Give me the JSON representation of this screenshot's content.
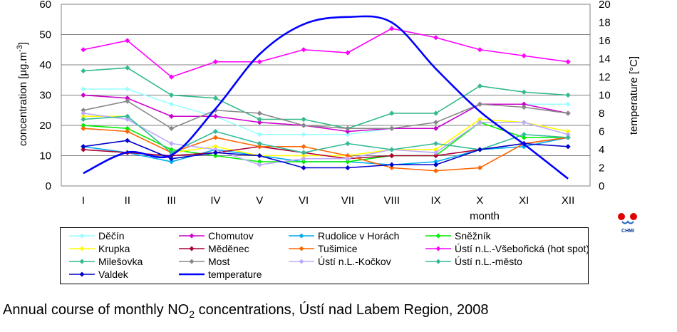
{
  "chart_data": {
    "type": "line",
    "categories": [
      "I",
      "II",
      "III",
      "IV",
      "V",
      "VI",
      "VII",
      "VIII",
      "IX",
      "X",
      "XI",
      "XII"
    ],
    "xlabel": "month",
    "ylabel": "concentration [µg.m-3]",
    "y2label": "temperature [°C]",
    "ylim": [
      0,
      60
    ],
    "y2lim": [
      0,
      20
    ],
    "yticks": [
      0,
      10,
      20,
      30,
      40,
      50,
      60
    ],
    "y2ticks": [
      0,
      2,
      4,
      6,
      8,
      10,
      12,
      14,
      16,
      18,
      20
    ],
    "grid": true,
    "legend_position": "bottom",
    "series": [
      {
        "name": "Děčín",
        "color": "#99ffff",
        "values": [
          32,
          32,
          27,
          23,
          17,
          17,
          17,
          19,
          19,
          27,
          27,
          27
        ]
      },
      {
        "name": "Chomutov",
        "color": "#cc00cc",
        "values": [
          30,
          29,
          23,
          23,
          21,
          20,
          18,
          19,
          19,
          27,
          27,
          24
        ]
      },
      {
        "name": "Rudolice v Horách",
        "color": "#00aaee",
        "values": [
          13,
          11,
          8,
          12,
          10,
          8,
          8,
          7,
          8,
          12,
          13,
          16
        ]
      },
      {
        "name": "Sněžník",
        "color": "#00ee00",
        "values": [
          20,
          19,
          12,
          10,
          8,
          8,
          8,
          10,
          10,
          21,
          16,
          16
        ]
      },
      {
        "name": "Krupka",
        "color": "#ffff00",
        "values": [
          23,
          23,
          11,
          13,
          10,
          10,
          10,
          12,
          12,
          22,
          21,
          18
        ]
      },
      {
        "name": "Měděnec",
        "color": "#aa0033",
        "values": [
          12,
          11,
          10,
          11,
          13,
          11,
          9,
          10,
          10,
          12,
          14,
          16
        ]
      },
      {
        "name": "Tušimice",
        "color": "#ff6600",
        "values": [
          19,
          18,
          11,
          16,
          13,
          13,
          10,
          6,
          5,
          6,
          14,
          16
        ]
      },
      {
        "name": "Ústí n.L.-Všebořická (hot spot)",
        "color": "#ff00ff",
        "values": [
          45,
          48,
          36,
          41,
          41,
          45,
          44,
          52,
          49,
          45,
          43,
          41
        ]
      },
      {
        "name": "Milešovka",
        "color": "#33bb88",
        "values": [
          38,
          39,
          30,
          29,
          22,
          22,
          19,
          24,
          24,
          33,
          31,
          30
        ]
      },
      {
        "name": "Most",
        "color": "#888888",
        "values": [
          25,
          28,
          19,
          25,
          24,
          20,
          19,
          19,
          21,
          27,
          26,
          24
        ]
      },
      {
        "name": "Ústí n.L.-Kočkov",
        "color": "#bbaaff",
        "values": [
          24,
          22,
          14,
          12,
          7,
          9,
          9,
          12,
          11,
          21,
          21,
          17
        ]
      },
      {
        "name": "Ústí n.L.-město",
        "color": "#33bb99",
        "values": [
          22,
          23,
          11,
          18,
          14,
          11,
          14,
          12,
          14,
          12,
          17,
          16
        ]
      },
      {
        "name": "Valdek",
        "color": "#0000cc",
        "values": [
          13,
          15,
          9,
          11,
          10,
          6,
          6,
          7,
          7,
          12,
          14,
          13
        ]
      },
      {
        "name": "temperature",
        "color": "#0000ff",
        "axis": "right",
        "values": [
          1.4,
          3.7,
          3.4,
          8.5,
          14.5,
          17.8,
          18.6,
          18.0,
          12.9,
          8.2,
          4.6,
          0.8
        ]
      }
    ]
  },
  "caption": {
    "text_pre": "Annual course of monthly NO",
    "text_sub": "2",
    "text_post": " concentrations, Ústí nad Labem Region, 2008"
  },
  "logo": {
    "text": "CHMI"
  }
}
